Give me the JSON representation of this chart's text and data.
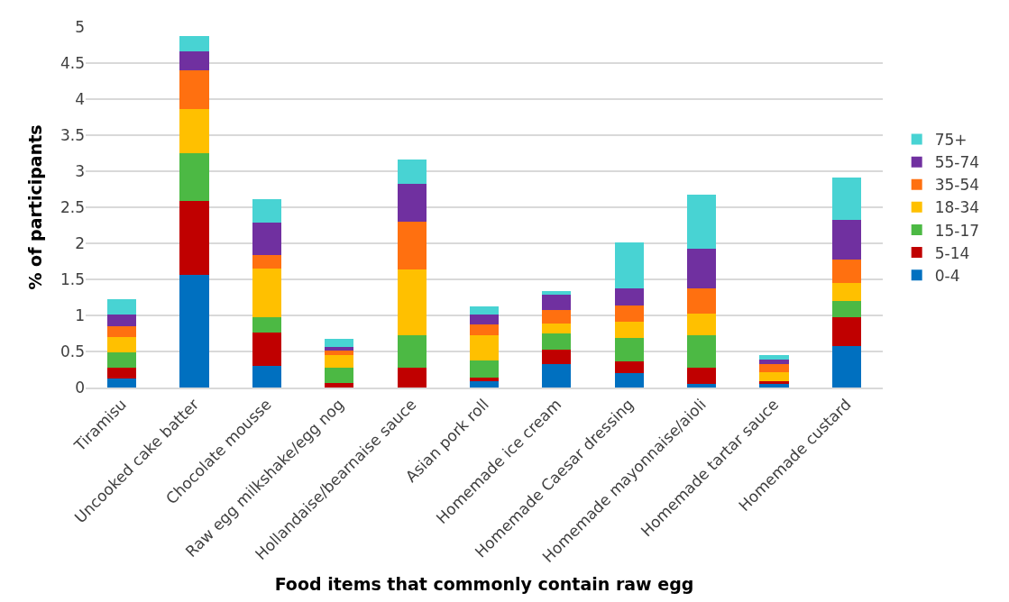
{
  "chart_data": {
    "type": "bar",
    "stacked": true,
    "xlabel": "Food items that commonly contain raw egg",
    "ylabel": "% of participants",
    "categories": [
      "Tiramisu",
      "Uncooked cake batter",
      "Chocolate mousse",
      "Raw egg milkshake/egg nog",
      "Hollandaise/bearnaise sauce",
      "Asian pork roll",
      "Homemade ice cream",
      "Homemade Caesar dressing",
      "Homemade mayonnaise/aioli",
      "Homemade tartar sauce",
      "Homemade custard"
    ],
    "series": [
      {
        "name": "0-4",
        "color": "#0070c0",
        "values": [
          0.12,
          1.56,
          0.3,
          0,
          0,
          0.09,
          0.33,
          0.2,
          0.05,
          0.05,
          0.58
        ]
      },
      {
        "name": "5-14",
        "color": "#c00000",
        "values": [
          0.15,
          1.03,
          0.46,
          0.06,
          0.28,
          0.05,
          0.2,
          0.16,
          0.23,
          0.04,
          0.4
        ]
      },
      {
        "name": "15-17",
        "color": "#4cb944",
        "values": [
          0.22,
          0.66,
          0.22,
          0.22,
          0.45,
          0.24,
          0.22,
          0.33,
          0.44,
          0,
          0.22
        ]
      },
      {
        "name": "18-34",
        "color": "#ffc000",
        "values": [
          0.21,
          0.61,
          0.67,
          0.17,
          0.91,
          0.34,
          0.14,
          0.22,
          0.3,
          0.12,
          0.25
        ]
      },
      {
        "name": "35-54",
        "color": "#ff7010",
        "values": [
          0.15,
          0.54,
          0.19,
          0.06,
          0.66,
          0.15,
          0.19,
          0.23,
          0.36,
          0.11,
          0.32
        ]
      },
      {
        "name": "55-74",
        "color": "#7030a0",
        "values": [
          0.16,
          0.26,
          0.45,
          0.05,
          0.53,
          0.14,
          0.21,
          0.23,
          0.54,
          0.07,
          0.55
        ]
      },
      {
        "name": "75+",
        "color": "#48d3d3",
        "values": [
          0.22,
          0.22,
          0.32,
          0.11,
          0.33,
          0.11,
          0.05,
          0.64,
          0.75,
          0.06,
          0.59
        ]
      }
    ],
    "ylim": [
      0,
      5
    ],
    "yticks": [
      0,
      0.5,
      1,
      1.5,
      2,
      2.5,
      3,
      3.5,
      4,
      4.5,
      5
    ],
    "grid": "y",
    "legend": "right"
  }
}
